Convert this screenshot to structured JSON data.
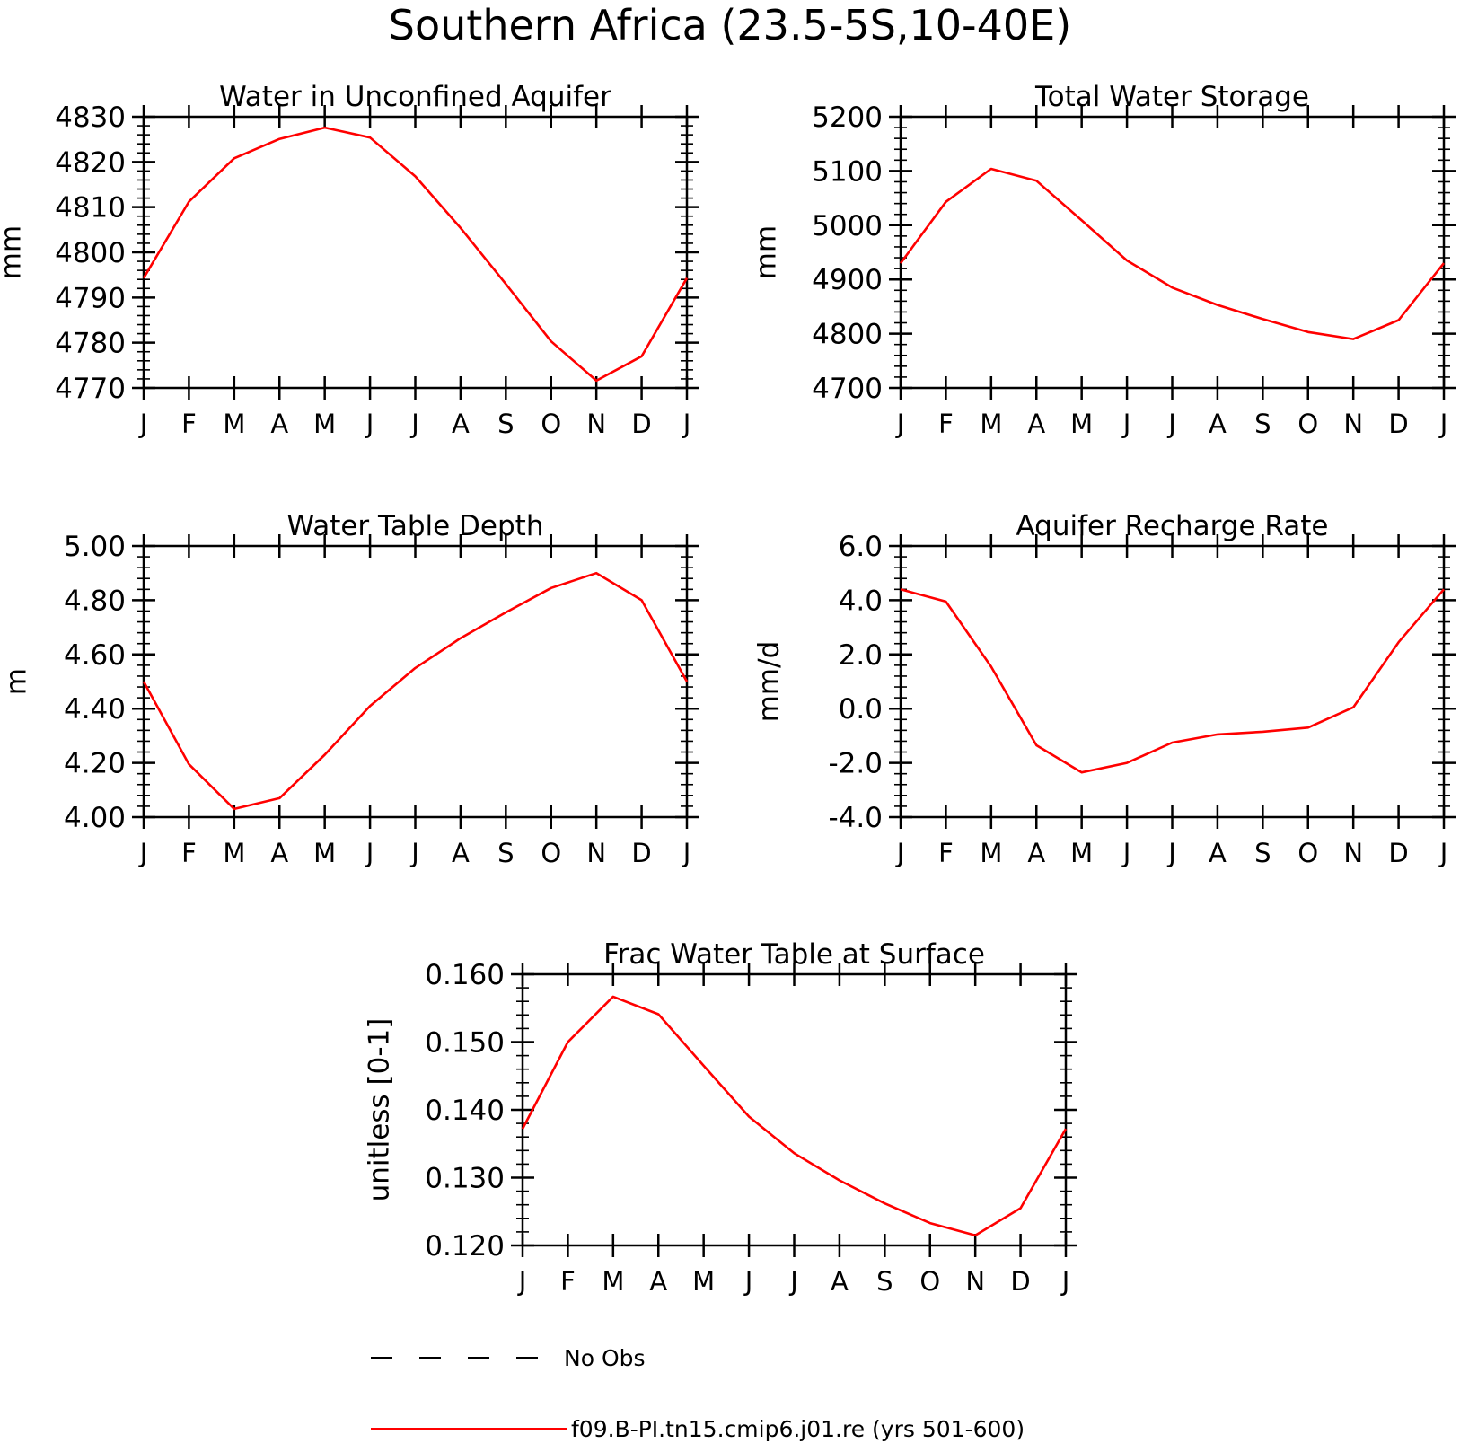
{
  "figure": {
    "title": "Southern Africa (23.5-5S,10-40E)",
    "line_color": "#ff0000"
  },
  "chart_data": [
    {
      "type": "line",
      "title": "Water in Unconfined Aquifer",
      "ylabel": "mm",
      "x": [
        "J",
        "F",
        "M",
        "A",
        "M",
        "J",
        "J",
        "A",
        "S",
        "O",
        "N",
        "D",
        "J"
      ],
      "ylim": [
        4770,
        4830
      ],
      "yticks": [
        4770,
        4780,
        4790,
        4800,
        4810,
        4820,
        4830
      ],
      "ytick_labels": [
        "4770",
        "4780",
        "4790",
        "4800",
        "4810",
        "4820",
        "4830"
      ],
      "yminor_step": 2,
      "series": [
        {
          "name": "f09.B-PI.tn15.cmip6.j01.re (yrs 501-600)",
          "values": [
            4794.3,
            4811.2,
            4820.8,
            4825.1,
            4827.6,
            4825.4,
            4816.8,
            4805.4,
            4793.0,
            4780.3,
            4771.6,
            4777.0,
            4794.3
          ]
        }
      ]
    },
    {
      "type": "line",
      "title": "Total Water Storage",
      "ylabel": "mm",
      "x": [
        "J",
        "F",
        "M",
        "A",
        "M",
        "J",
        "J",
        "A",
        "S",
        "O",
        "N",
        "D",
        "J"
      ],
      "ylim": [
        4700,
        5200
      ],
      "yticks": [
        4700,
        4800,
        4900,
        5000,
        5100,
        5200
      ],
      "ytick_labels": [
        "4700",
        "4800",
        "4900",
        "5000",
        "5100",
        "5200"
      ],
      "yminor_step": 20,
      "series": [
        {
          "name": "f09.B-PI.tn15.cmip6.j01.re (yrs 501-600)",
          "values": [
            4930,
            5043,
            5104,
            5082,
            5009,
            4935,
            4885,
            4853,
            4827,
            4803,
            4790,
            4825,
            4930
          ]
        }
      ]
    },
    {
      "type": "line",
      "title": "Water Table Depth",
      "ylabel": "m",
      "x": [
        "J",
        "F",
        "M",
        "A",
        "M",
        "J",
        "J",
        "A",
        "S",
        "O",
        "N",
        "D",
        "J"
      ],
      "ylim": [
        4.0,
        5.0
      ],
      "yticks": [
        4.0,
        4.2,
        4.4,
        4.6,
        4.8,
        5.0
      ],
      "ytick_labels": [
        "4.00",
        "4.20",
        "4.40",
        "4.60",
        "4.80",
        "5.00"
      ],
      "yminor_step": 0.04,
      "series": [
        {
          "name": "f09.B-PI.tn15.cmip6.j01.re (yrs 501-600)",
          "values": [
            4.5,
            4.195,
            4.03,
            4.07,
            4.23,
            4.41,
            4.55,
            4.66,
            4.755,
            4.845,
            4.9,
            4.8,
            4.5
          ]
        }
      ]
    },
    {
      "type": "line",
      "title": "Aquifer Recharge Rate",
      "ylabel": "mm/d",
      "x": [
        "J",
        "F",
        "M",
        "A",
        "M",
        "J",
        "J",
        "A",
        "S",
        "O",
        "N",
        "D",
        "J"
      ],
      "ylim": [
        -4.0,
        6.0
      ],
      "yticks": [
        -4.0,
        -2.0,
        0.0,
        2.0,
        4.0,
        6.0
      ],
      "ytick_labels": [
        "-4.0",
        "-2.0",
        "0.0",
        "2.0",
        "4.0",
        "6.0"
      ],
      "yminor_step": 0.4,
      "series": [
        {
          "name": "f09.B-PI.tn15.cmip6.j01.re (yrs 501-600)",
          "values": [
            4.4,
            3.95,
            1.55,
            -1.35,
            -2.35,
            -2.0,
            -1.25,
            -0.95,
            -0.85,
            -0.7,
            0.05,
            2.45,
            4.4
          ]
        }
      ]
    },
    {
      "type": "line",
      "title": "Frac Water Table at Surface",
      "ylabel": "unitless [0-1]",
      "x": [
        "J",
        "F",
        "M",
        "A",
        "M",
        "J",
        "J",
        "A",
        "S",
        "O",
        "N",
        "D",
        "J"
      ],
      "ylim": [
        0.12,
        0.16
      ],
      "yticks": [
        0.12,
        0.13,
        0.14,
        0.15,
        0.16
      ],
      "ytick_labels": [
        "0.120",
        "0.130",
        "0.140",
        "0.150",
        "0.160"
      ],
      "yminor_step": 0.002,
      "series": [
        {
          "name": "f09.B-PI.tn15.cmip6.j01.re (yrs 501-600)",
          "values": [
            0.1372,
            0.15,
            0.1567,
            0.1541,
            0.1465,
            0.139,
            0.1336,
            0.1296,
            0.1262,
            0.1233,
            0.1215,
            0.1255,
            0.1372
          ]
        }
      ]
    }
  ],
  "legend": {
    "placement": "bottom",
    "items": [
      {
        "label": "No Obs",
        "style": "dashed",
        "color": "#000000"
      },
      {
        "label": "f09.B-PI.tn15.cmip6.j01.re (yrs 501-600)",
        "style": "solid",
        "color": "#ff0000"
      }
    ]
  }
}
